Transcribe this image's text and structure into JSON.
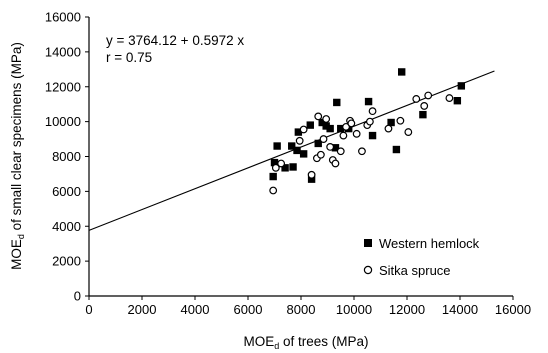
{
  "chart_data": {
    "type": "scatter",
    "xlabel": "MOEd of trees (MPa)",
    "ylabel": "MOEd of small clear specimens (MPa)",
    "x_ticks": [
      "0",
      "2000",
      "4000",
      "6000",
      "8000",
      "10000",
      "12000",
      "14000",
      "16000"
    ],
    "y_ticks": [
      "0",
      "2000",
      "4000",
      "6000",
      "8000",
      "10000",
      "12000",
      "14000",
      "16000"
    ],
    "xlim": [
      0,
      16000
    ],
    "ylim": [
      0,
      16000
    ],
    "grid": false,
    "legend_position": "bottom-right",
    "annotations": {
      "equation": "y = 3764.12 + 0.5972 x",
      "r": "r = 0.75"
    },
    "regression": {
      "intercept": 3764.12,
      "slope": 0.5972,
      "x_start": 0,
      "x_end": 15300
    },
    "series": [
      {
        "name": "Western hemlock",
        "marker": "filled-square",
        "color": "#000000",
        "points": [
          [
            6950,
            6850
          ],
          [
            7000,
            7650
          ],
          [
            7100,
            8600
          ],
          [
            7400,
            7350
          ],
          [
            7650,
            8600
          ],
          [
            7700,
            7400
          ],
          [
            7850,
            8350
          ],
          [
            7900,
            9400
          ],
          [
            8100,
            8150
          ],
          [
            8350,
            9800
          ],
          [
            8400,
            6700
          ],
          [
            8650,
            8750
          ],
          [
            8800,
            9950
          ],
          [
            8950,
            9750
          ],
          [
            9100,
            9600
          ],
          [
            9300,
            8500
          ],
          [
            9350,
            11100
          ],
          [
            9500,
            9600
          ],
          [
            9800,
            9600
          ],
          [
            10550,
            11150
          ],
          [
            10700,
            9200
          ],
          [
            11400,
            9950
          ],
          [
            11600,
            8400
          ],
          [
            11800,
            12850
          ],
          [
            12600,
            10400
          ],
          [
            13900,
            11200
          ],
          [
            14050,
            12050
          ]
        ]
      },
      {
        "name": "Sitka spruce",
        "marker": "open-circle",
        "color": "#000000",
        "points": [
          [
            6950,
            6050
          ],
          [
            7050,
            7350
          ],
          [
            7250,
            7600
          ],
          [
            7950,
            8900
          ],
          [
            8100,
            9550
          ],
          [
            8400,
            6950
          ],
          [
            8600,
            7900
          ],
          [
            8650,
            10300
          ],
          [
            8750,
            8100
          ],
          [
            8850,
            9000
          ],
          [
            8950,
            10150
          ],
          [
            9100,
            8550
          ],
          [
            9200,
            7800
          ],
          [
            9300,
            7600
          ],
          [
            9500,
            8300
          ],
          [
            9600,
            9200
          ],
          [
            9700,
            9700
          ],
          [
            9850,
            10050
          ],
          [
            9900,
            9900
          ],
          [
            10100,
            9300
          ],
          [
            10300,
            8300
          ],
          [
            10500,
            9800
          ],
          [
            10600,
            10000
          ],
          [
            10700,
            10600
          ],
          [
            11300,
            9600
          ],
          [
            11750,
            10050
          ],
          [
            12050,
            9400
          ],
          [
            12350,
            11300
          ],
          [
            12650,
            10900
          ],
          [
            12800,
            11500
          ],
          [
            13600,
            11350
          ]
        ]
      }
    ]
  }
}
